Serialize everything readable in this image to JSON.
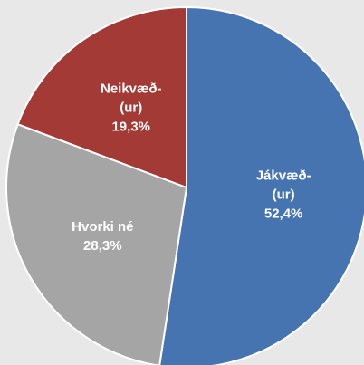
{
  "chart_data": {
    "type": "pie",
    "categories": [
      "Jákvæð-(ur)",
      "Hvorki né",
      "Neikvæð-(ur)"
    ],
    "values": [
      52.4,
      28.3,
      19.3
    ],
    "value_labels": [
      "52,4%",
      "28,3%",
      "19,3%"
    ],
    "colors": [
      "#4674b0",
      "#a5a5a5",
      "#a33a36"
    ]
  }
}
